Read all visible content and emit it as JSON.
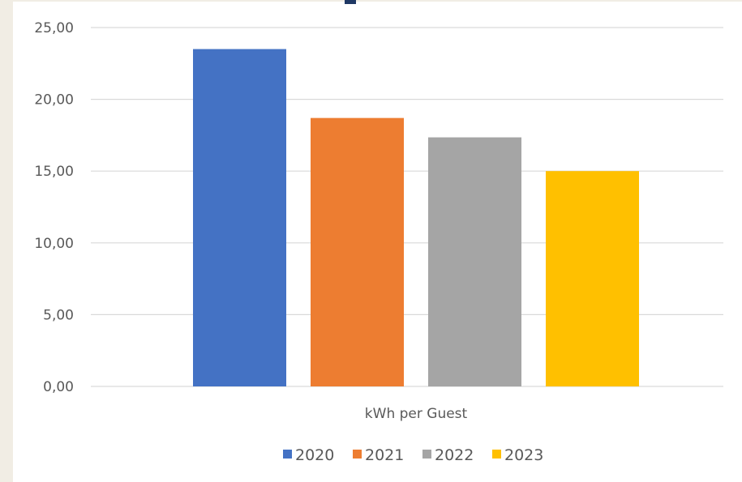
{
  "chart_data": {
    "type": "bar",
    "title": "",
    "xlabel": "",
    "ylabel": "",
    "categories": [
      "kWh per Guest"
    ],
    "series": [
      {
        "name": "2020",
        "values": [
          23.5
        ],
        "color": "#4472c4"
      },
      {
        "name": "2021",
        "values": [
          18.7
        ],
        "color": "#ed7d31"
      },
      {
        "name": "2022",
        "values": [
          17.35
        ],
        "color": "#a5a5a5"
      },
      {
        "name": "2023",
        "values": [
          15.0
        ],
        "color": "#ffc000"
      }
    ],
    "ylim": [
      0,
      25
    ],
    "yticks": [
      "0,00",
      "5,00",
      "10,00",
      "15,00",
      "20,00",
      "25,00"
    ],
    "grid": true,
    "legend_position": "bottom"
  },
  "colors": {
    "page_background": "#f1ede4",
    "plot_background": "#ffffff",
    "gridline": "#d9d9d9",
    "text": "#595959"
  }
}
